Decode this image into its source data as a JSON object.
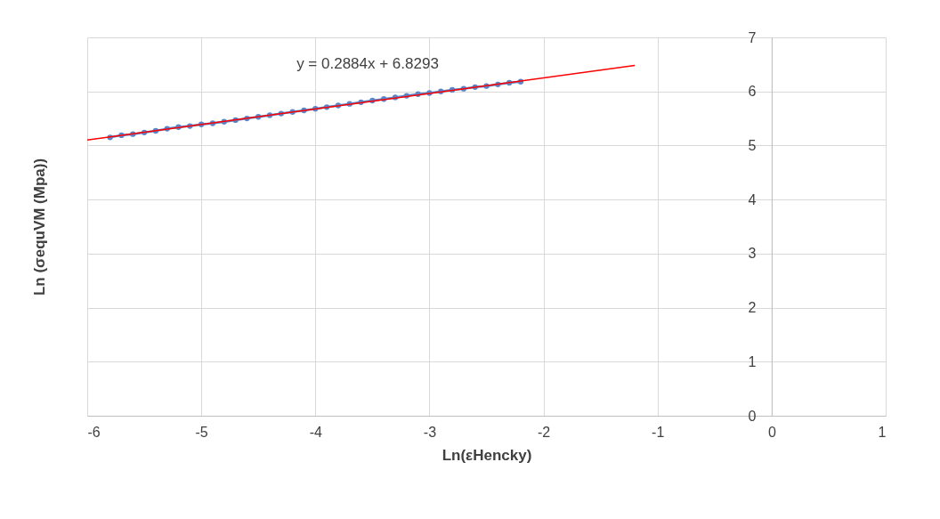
{
  "chart_data": {
    "type": "line",
    "xlabel": "Ln(εHencky)",
    "ylabel": "Ln (σequVM (Mpa))",
    "annotations": [
      "y = 0.2884x + 6.8293"
    ],
    "xlim": [
      -6,
      1
    ],
    "xticks": [
      -6,
      -5,
      -4,
      -3,
      -2,
      -1,
      0,
      1
    ],
    "ylim": [
      0,
      7
    ],
    "yticks": [
      0,
      1,
      2,
      3,
      4,
      5,
      6,
      7
    ],
    "grid": true,
    "marker": "circle",
    "series": [
      {
        "color": "#5b85c8",
        "x": [
          -5.8,
          -5.7,
          -5.6,
          -5.5,
          -5.4,
          -5.3,
          -5.2,
          -5.1,
          -5.0,
          -4.9,
          -4.8,
          -4.7,
          -4.6,
          -4.5,
          -4.4,
          -4.3,
          -4.2,
          -4.1,
          -4.0,
          -3.9,
          -3.8,
          -3.7,
          -3.6,
          -3.5,
          -3.4,
          -3.3,
          -3.2,
          -3.1,
          -3.0,
          -2.9,
          -2.8,
          -2.7,
          -2.6,
          -2.5,
          -2.4,
          -2.3,
          -2.2
        ],
        "values": [
          5.15,
          5.19,
          5.21,
          5.24,
          5.27,
          5.31,
          5.34,
          5.36,
          5.39,
          5.41,
          5.44,
          5.47,
          5.5,
          5.53,
          5.56,
          5.59,
          5.62,
          5.65,
          5.68,
          5.71,
          5.74,
          5.77,
          5.8,
          5.83,
          5.86,
          5.89,
          5.92,
          5.95,
          5.97,
          6.0,
          6.03,
          6.05,
          6.08,
          6.1,
          6.13,
          6.16,
          6.18
        ]
      },
      {
        "type": "line",
        "color": "#ff0000",
        "marker": "none",
        "x": [
          -6,
          -1.2
        ],
        "values": [
          5.1,
          6.48
        ]
      }
    ]
  }
}
